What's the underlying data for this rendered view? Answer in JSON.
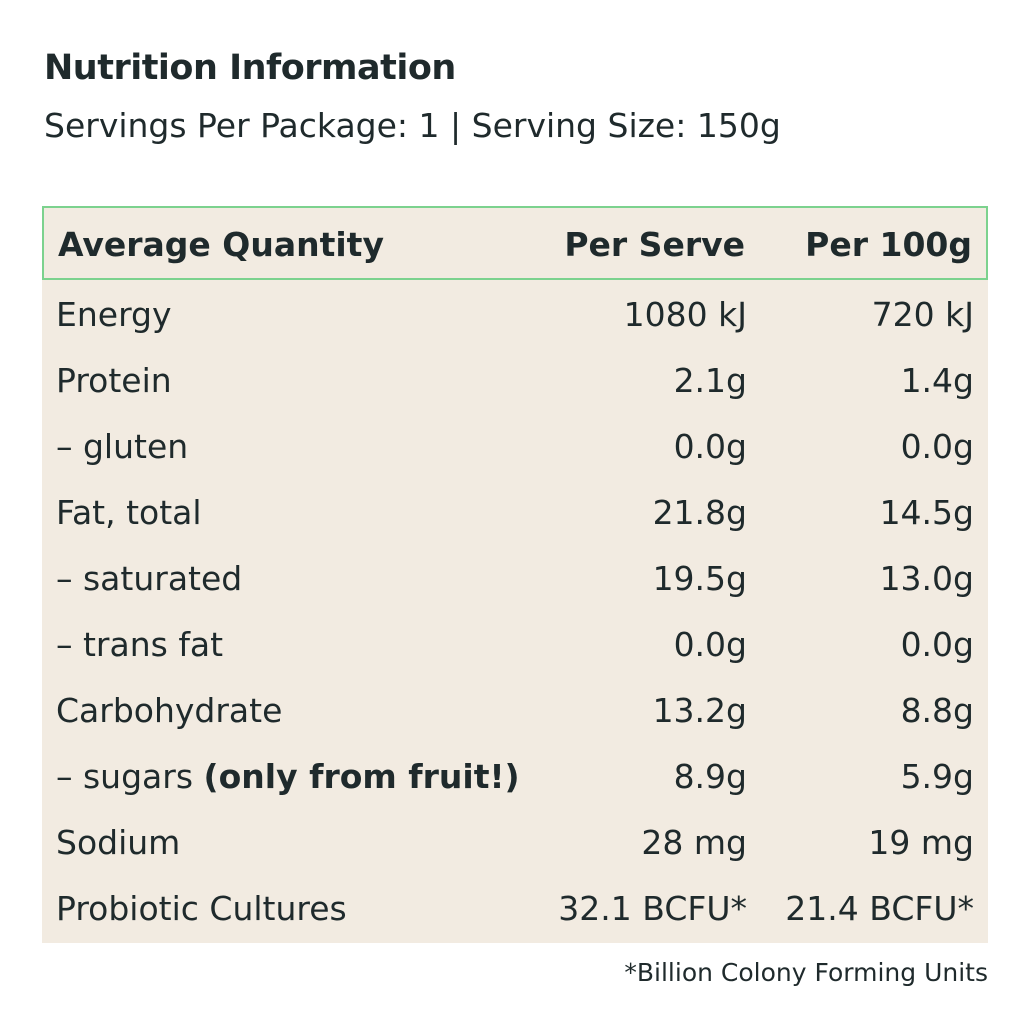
{
  "title": "Nutrition Information",
  "subtitle": "Servings Per Package: 1 | Serving Size: 150g",
  "table": {
    "headers": {
      "name": "Average Quantity",
      "per_serve": "Per Serve",
      "per_100g": "Per 100g"
    },
    "rows": [
      {
        "name": "Energy",
        "name_suffix": "",
        "per_serve": "1080 kJ",
        "per_100g": "720 kJ"
      },
      {
        "name": "Protein",
        "name_suffix": "",
        "per_serve": "2.1g",
        "per_100g": "1.4g"
      },
      {
        "name": "– gluten",
        "name_suffix": "",
        "per_serve": "0.0g",
        "per_100g": "0.0g"
      },
      {
        "name": "Fat, total",
        "name_suffix": "",
        "per_serve": "21.8g",
        "per_100g": "14.5g"
      },
      {
        "name": "– saturated",
        "name_suffix": "",
        "per_serve": "19.5g",
        "per_100g": "13.0g"
      },
      {
        "name": "– trans fat",
        "name_suffix": "",
        "per_serve": "0.0g",
        "per_100g": "0.0g"
      },
      {
        "name": "Carbohydrate",
        "name_suffix": "",
        "per_serve": "13.2g",
        "per_100g": "8.8g"
      },
      {
        "name": "– sugars ",
        "name_suffix": "(only from fruit!)",
        "per_serve": "8.9g",
        "per_100g": "5.9g"
      },
      {
        "name": "Sodium",
        "name_suffix": "",
        "per_serve": "28 mg",
        "per_100g": "19 mg"
      },
      {
        "name": "Probiotic Cultures",
        "name_suffix": "",
        "per_serve": "32.1 BCFU*",
        "per_100g": "21.4 BCFU*"
      }
    ]
  },
  "footnote": "*Billion Colony Forming Units",
  "colors": {
    "panel_background": "#f2ebe1",
    "header_border": "#7cd28e",
    "text": "#1f2a2c"
  }
}
